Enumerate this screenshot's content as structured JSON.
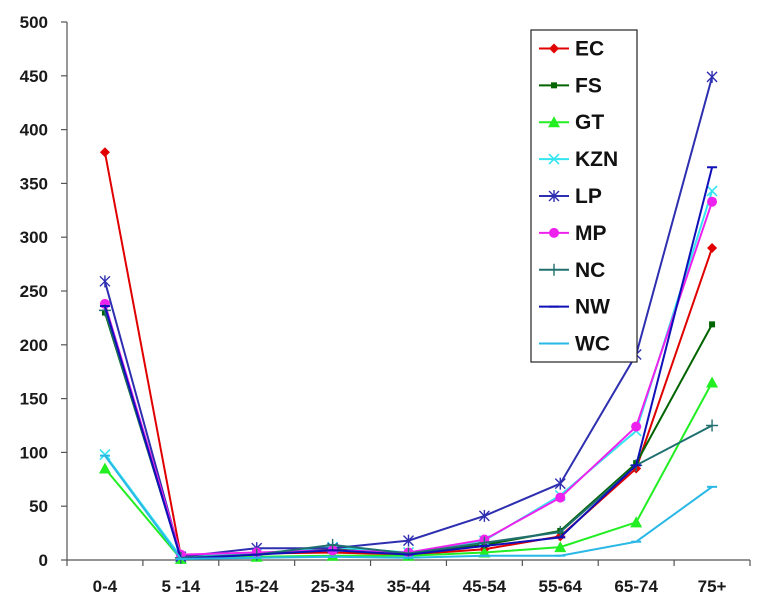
{
  "chart_data": {
    "type": "line",
    "categories": [
      "0-4",
      "5 -14",
      "15-24",
      "25-34",
      "35-44",
      "45-54",
      "55-64",
      "65-74",
      "75+"
    ],
    "ylim": [
      0,
      500
    ],
    "yticks": [
      0,
      50,
      100,
      150,
      200,
      250,
      300,
      350,
      400,
      450,
      500
    ],
    "grid": false,
    "legend_position": "top-right",
    "series": [
      {
        "name": "EC",
        "color": "#e00000",
        "marker": "diamond",
        "values": [
          379,
          4,
          6,
          7,
          5,
          10,
          22,
          85,
          290
        ]
      },
      {
        "name": "FS",
        "color": "#006400",
        "marker": "square",
        "values": [
          230,
          3,
          6,
          10,
          6,
          14,
          27,
          90,
          219
        ]
      },
      {
        "name": "GT",
        "color": "#22ee22",
        "marker": "triangle",
        "values": [
          85,
          1,
          3,
          4,
          4,
          7,
          12,
          35,
          165
        ]
      },
      {
        "name": "KZN",
        "color": "#33e5f0",
        "marker": "x",
        "values": [
          98,
          3,
          6,
          12,
          7,
          18,
          60,
          120,
          343
        ]
      },
      {
        "name": "LP",
        "color": "#2e2eb0",
        "marker": "star",
        "values": [
          259,
          3,
          11,
          11,
          18,
          41,
          71,
          191,
          449
        ]
      },
      {
        "name": "MP",
        "color": "#ee22ee",
        "marker": "circle",
        "values": [
          238,
          5,
          7,
          9,
          7,
          19,
          58,
          124,
          333
        ]
      },
      {
        "name": "NC",
        "color": "#207070",
        "marker": "plus",
        "values": [
          232,
          2,
          5,
          14,
          6,
          16,
          26,
          88,
          125
        ]
      },
      {
        "name": "NW",
        "color": "#1010b8",
        "marker": "dash",
        "values": [
          236,
          1,
          5,
          9,
          5,
          13,
          21,
          88,
          365
        ]
      },
      {
        "name": "WC",
        "color": "#29b8e6",
        "marker": "dash",
        "values": [
          97,
          1,
          2,
          3,
          2,
          4,
          4,
          17,
          68
        ]
      }
    ]
  }
}
